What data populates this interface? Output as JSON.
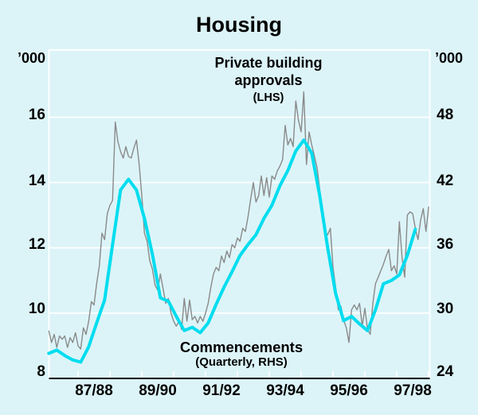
{
  "chart_data": {
    "type": "line",
    "title": "Housing",
    "left_axis": {
      "unit": "’000",
      "ticks": [
        8,
        10,
        12,
        14,
        16
      ],
      "range": [
        8,
        18.06
      ]
    },
    "right_axis": {
      "unit": "’000",
      "ticks": [
        24,
        30,
        36,
        42,
        48
      ],
      "range": [
        24,
        54.2
      ]
    },
    "x_axis": {
      "labels": [
        "87/88",
        "89/90",
        "91/92",
        "93/94",
        "95/96",
        "97/98"
      ],
      "tick_interval": "1 year, ticks at July of 1987 through 1998",
      "range_years": [
        1986.58,
        1998.63
      ],
      "grid": "horizontal white gridlines at left-axis values 10,12,14,16"
    },
    "annotations": {
      "approvals": "Private building approvals",
      "approvals_axis": "(LHS)",
      "commencements": "Commencements",
      "commencements_axis": "(Quarterly, RHS)"
    },
    "colors": {
      "background": "#dcf4f8",
      "gridline": "#ffffff",
      "axis_line": "#000000",
      "approvals_line": "#8a8a8a",
      "commencements_line": "#00ddef"
    },
    "series": [
      {
        "name": "Private building approvals",
        "axis": "LHS",
        "frequency": "monthly",
        "color": "#8a8a8a",
        "width": 1.4,
        "start_year": 1986.583,
        "step_years": 0.083333,
        "values": [
          9.45,
          9.1,
          9.35,
          8.95,
          9.3,
          9.2,
          9.3,
          8.95,
          9.25,
          9.1,
          9.4,
          9.0,
          8.9,
          9.55,
          9.35,
          9.75,
          10.35,
          10.25,
          10.9,
          11.45,
          12.45,
          12.25,
          13.05,
          13.3,
          13.45,
          15.85,
          15.25,
          14.95,
          14.75,
          15.1,
          14.8,
          14.75,
          15.05,
          15.3,
          14.55,
          13.6,
          12.45,
          12.2,
          11.6,
          11.35,
          10.85,
          10.7,
          11.2,
          10.75,
          10.3,
          10.45,
          10.0,
          9.75,
          9.6,
          9.75,
          9.5,
          10.45,
          9.75,
          10.4,
          9.8,
          9.9,
          9.7,
          9.9,
          9.75,
          10.0,
          10.3,
          10.8,
          11.2,
          11.4,
          11.3,
          11.75,
          11.55,
          11.9,
          11.7,
          12.1,
          12.0,
          12.3,
          12.2,
          12.6,
          12.5,
          12.95,
          13.5,
          14.0,
          13.4,
          13.6,
          14.2,
          13.6,
          14.15,
          13.55,
          14.2,
          14.1,
          14.35,
          14.5,
          14.7,
          15.75,
          15.15,
          15.35,
          15.1,
          16.5,
          15.9,
          15.55,
          16.78,
          14.55,
          15.55,
          15.15,
          14.8,
          14.45,
          13.8,
          13.1,
          12.5,
          12.4,
          12.6,
          11.4,
          10.8,
          10.1,
          10.2,
          9.8,
          9.55,
          9.1,
          10.1,
          10.25,
          10.1,
          10.3,
          9.6,
          10.15,
          9.5,
          9.35,
          10.3,
          10.9,
          11.1,
          11.3,
          11.5,
          11.75,
          11.95,
          11.3,
          11.45,
          11.2,
          12.8,
          11.7,
          11.1,
          13.0,
          13.1,
          13.05,
          12.6,
          12.25,
          12.85,
          13.2,
          12.5,
          13.25
        ]
      },
      {
        "name": "Commencements",
        "axis": "RHS",
        "frequency": "quarterly",
        "color": "#00ddef",
        "width": 4,
        "start_year": 1986.583,
        "step_years": 0.25,
        "values": [
          26.3,
          26.6,
          26.1,
          25.7,
          25.5,
          26.9,
          29.1,
          31.2,
          36.3,
          41.3,
          42.3,
          41.3,
          38.7,
          35.4,
          31.4,
          31.1,
          29.7,
          28.4,
          28.7,
          28.2,
          29.1,
          30.8,
          32.4,
          33.8,
          35.3,
          36.3,
          37.2,
          38.7,
          39.9,
          41.7,
          43.1,
          44.9,
          45.9,
          44.7,
          40.8,
          36.0,
          31.8,
          29.3,
          29.7,
          29.0,
          28.4,
          30.3,
          32.7,
          33.0,
          33.5,
          35.3,
          37.7
        ]
      }
    ]
  }
}
